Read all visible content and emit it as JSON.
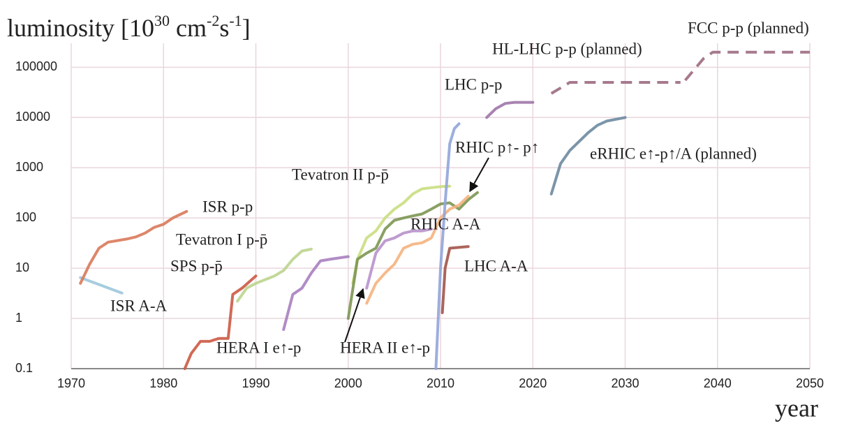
{
  "chart_data": {
    "type": "line",
    "ylabel": [
      "luminosity [10",
      "30",
      " cm",
      "-2",
      "s",
      "-1",
      "]"
    ],
    "xlabel": "year",
    "xlim": [
      1970,
      2050
    ],
    "xticks": [
      1970,
      1980,
      1990,
      2000,
      2010,
      2020,
      2030,
      2040,
      2050
    ],
    "ylim": [
      0.1,
      300000
    ],
    "yticks": [
      0.1,
      1,
      10,
      100,
      1000,
      10000,
      100000
    ],
    "log_y": true,
    "grid": true,
    "series": [
      {
        "name": "ISR A-A",
        "color": "#9cc8dc",
        "x": [
          1971,
          1975.5
        ],
        "values": [
          6.5,
          3.2
        ]
      },
      {
        "name": "ISR p-p",
        "color": "#d9795a",
        "x": [
          1971,
          1972,
          1973,
          1974,
          1976,
          1977,
          1978,
          1979,
          1980,
          1981,
          1982.5
        ],
        "values": [
          5,
          12,
          25,
          33,
          38,
          42,
          50,
          65,
          75,
          100,
          135
        ]
      },
      {
        "name": "SPS p-p̄",
        "color": "#cc5a44",
        "x": [
          1982.3,
          1983,
          1984,
          1985,
          1986,
          1987,
          1987.5,
          1988.5,
          1990
        ],
        "values": [
          0.1,
          0.2,
          0.35,
          0.35,
          0.4,
          0.4,
          3,
          4,
          7
        ]
      },
      {
        "name": "Tevatron I p-p̄",
        "color": "#bcd48e",
        "x": [
          1988,
          1989,
          1990,
          1992,
          1993,
          1994,
          1995,
          1996
        ],
        "values": [
          2.2,
          4,
          5,
          7,
          9,
          15,
          22,
          24
        ]
      },
      {
        "name": "HERA I  e↑-p",
        "color": "#a87fc0",
        "x": [
          1993,
          1994,
          1995,
          1996,
          1997,
          1998,
          2000
        ],
        "values": [
          0.6,
          3,
          4,
          8,
          14,
          15,
          17
        ]
      },
      {
        "name": "Tevatron II p-p̄",
        "color": "#c9de80",
        "x": [
          2000.5,
          2001,
          2002,
          2003,
          2004,
          2005,
          2006,
          2007,
          2008,
          2009,
          2010,
          2011
        ],
        "values": [
          5,
          15,
          40,
          55,
          100,
          150,
          200,
          300,
          380,
          400,
          420,
          430
        ]
      },
      {
        "name": "RHIC p↑- p↑",
        "color": "#7c9652",
        "x": [
          2000,
          2001,
          2002,
          2003,
          2004,
          2005,
          2006,
          2007,
          2008,
          2009,
          2010,
          2011,
          2012,
          2013,
          2014
        ],
        "values": [
          1,
          15,
          20,
          25,
          60,
          90,
          100,
          110,
          120,
          150,
          190,
          200,
          150,
          230,
          320
        ]
      },
      {
        "name": "RHIC A-A",
        "color": "#f5b27e",
        "x": [
          2002,
          2003,
          2004,
          2005,
          2006,
          2007,
          2008,
          2009,
          2010,
          2011,
          2012,
          2013
        ],
        "values": [
          2,
          5,
          8,
          12,
          25,
          30,
          32,
          40,
          100,
          150,
          180,
          270
        ]
      },
      {
        "name": "HERA II e↑-p",
        "color": "#b891cb",
        "x": [
          2002,
          2003,
          2004,
          2005,
          2006,
          2007,
          2008,
          2009
        ],
        "values": [
          4,
          20,
          35,
          40,
          50,
          55,
          55,
          60
        ]
      },
      {
        "color": "#91a5d9",
        "x": [
          2009.5,
          2010,
          2010.5,
          2011,
          2011.5,
          2012
        ],
        "values": [
          0.1,
          10,
          200,
          3000,
          6000,
          7500
        ]
      },
      {
        "name": "LHC A-A",
        "color": "#a2544a",
        "x": [
          2010.2,
          2010.5,
          2011,
          2013
        ],
        "values": [
          1.3,
          10,
          25,
          27
        ]
      },
      {
        "name": "LHC p-p",
        "color": "#9f76a8",
        "x": [
          2015,
          2016,
          2017,
          2018,
          2020
        ],
        "values": [
          10000,
          15000,
          19000,
          20000,
          20000
        ]
      },
      {
        "name": "HL-LHC p-p (planned)",
        "color": "#9c6c82",
        "dash": true,
        "x": [
          2022,
          2024,
          2036
        ],
        "values": [
          30000,
          50000,
          50000
        ]
      },
      {
        "name": "FCC p-p (planned)",
        "color": "#9c6c82",
        "dash": true,
        "x": [
          2036.5,
          2038.5,
          2039.5,
          2050
        ],
        "values": [
          55000,
          150000,
          200000,
          200000
        ]
      },
      {
        "name": "eRHIC e↑-p↑/A (planned)",
        "color": "#6d8aa0",
        "x": [
          2022,
          2023,
          2024,
          2026,
          2027,
          2028,
          2030
        ],
        "values": [
          300,
          1200,
          2200,
          5000,
          7000,
          8500,
          10000
        ]
      }
    ]
  }
}
